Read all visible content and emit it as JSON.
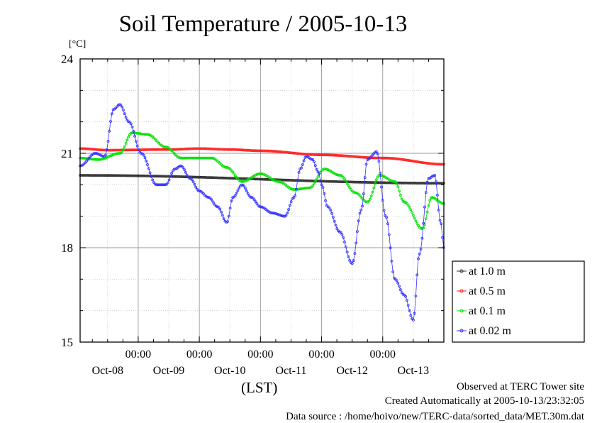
{
  "chart_data": {
    "type": "line",
    "title": "Soil Temperature / 2005-10-13",
    "ylabel": "[°C]",
    "xlabel": "(LST)",
    "ylim": [
      15,
      24
    ],
    "yticks": [
      15,
      18,
      21,
      24
    ],
    "xlim": [
      -0.95,
      5.0
    ],
    "x_tick_times": [
      "00:00",
      "00:00",
      "00:00",
      "00:00",
      "00:00"
    ],
    "x_tick_days": [
      "Oct-08",
      "Oct-09",
      "Oct-10",
      "Oct-11",
      "Oct-12",
      "Oct-13"
    ],
    "grid": true,
    "legend_position": "right",
    "series": [
      {
        "name": "at 1.0 m",
        "color": "#303030",
        "x": [
          -0.95,
          5.0
        ],
        "y": [
          20.3,
          20.05
        ]
      },
      {
        "name": "at 0.5 m",
        "color": "#ff2020",
        "x": [
          -0.95,
          -0.5,
          0.5,
          1.0,
          1.5,
          2.0,
          3.0,
          4.0,
          5.0
        ],
        "y": [
          21.15,
          21.1,
          21.12,
          21.15,
          21.12,
          21.08,
          20.95,
          20.85,
          20.65
        ]
      },
      {
        "name": "at 0.1 m",
        "color": "#00e000",
        "x": [
          -0.95,
          -0.65,
          -0.3,
          -0.1,
          0.15,
          0.45,
          0.7,
          1.2,
          1.45,
          1.7,
          2.0,
          2.3,
          2.55,
          2.8,
          3.05,
          3.3,
          3.55,
          3.75,
          3.95,
          4.2,
          4.35,
          4.65,
          4.8,
          5.0
        ],
        "y": [
          20.85,
          20.8,
          21.0,
          21.65,
          21.6,
          21.2,
          20.85,
          20.85,
          20.55,
          20.1,
          20.35,
          20.1,
          19.85,
          19.9,
          20.5,
          20.3,
          19.75,
          19.45,
          20.3,
          20.1,
          19.45,
          18.6,
          19.6,
          19.4
        ]
      },
      {
        "name": "at 0.02 m",
        "color": "#3030ff",
        "x": [
          -0.95,
          -0.7,
          -0.55,
          -0.4,
          -0.3,
          -0.15,
          0.05,
          0.3,
          0.45,
          0.6,
          0.7,
          0.85,
          1.0,
          1.15,
          1.3,
          1.45,
          1.55,
          1.7,
          1.85,
          2.0,
          2.2,
          2.4,
          2.55,
          2.65,
          2.75,
          2.85,
          2.95,
          3.0,
          3.1,
          3.3,
          3.5,
          3.65,
          3.75,
          3.9,
          4.05,
          4.2,
          4.35,
          4.5,
          4.6,
          4.75,
          4.85,
          4.95,
          5.0
        ],
        "y": [
          20.6,
          21.0,
          20.9,
          22.4,
          22.55,
          22.0,
          21.0,
          20.0,
          20.0,
          20.5,
          20.6,
          20.2,
          19.8,
          19.6,
          19.3,
          18.8,
          19.6,
          20.0,
          19.6,
          19.3,
          19.1,
          19.0,
          19.6,
          20.5,
          20.9,
          20.8,
          20.4,
          20.0,
          19.3,
          18.5,
          17.5,
          19.2,
          20.8,
          21.05,
          19.0,
          17.0,
          16.5,
          15.7,
          17.8,
          20.2,
          20.3,
          18.8,
          18.0
        ]
      }
    ]
  },
  "footer": {
    "line1": "Observed at TERC Tower site",
    "line2": "Created Automatically at 2005-10-13/23:32:05",
    "line3": "Data source : /home/hoivo/new/TERC-data/sorted_data/MET.30m.dat"
  }
}
